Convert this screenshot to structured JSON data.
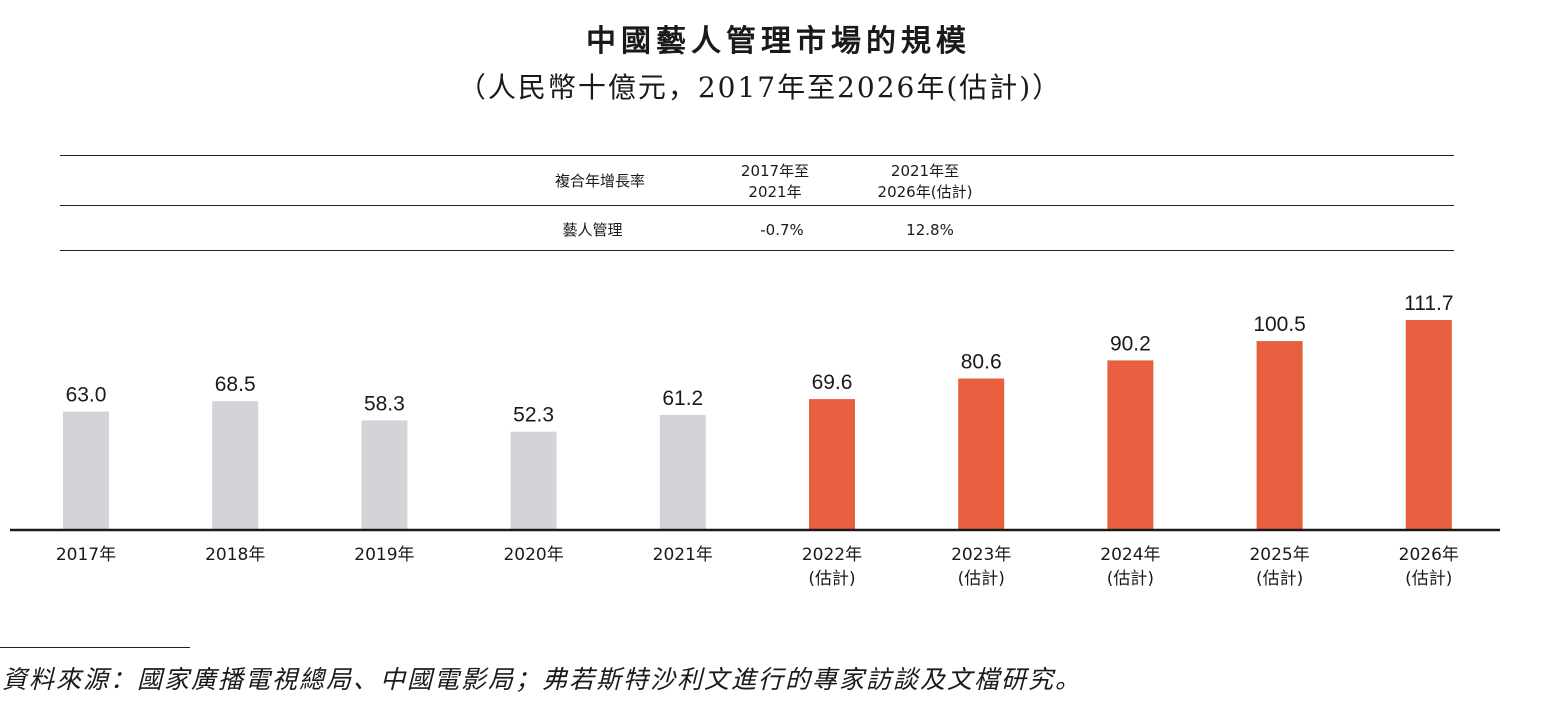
{
  "title": "中國藝人管理市場的規模",
  "subtitle": "（人民幣十億元，2017年至2026年(估計)）",
  "cagr_table": {
    "header_label": "複合年增長率",
    "col1_header_line1": "2017年至",
    "col1_header_line2": "2021年",
    "col2_header_line1": "2021年至",
    "col2_header_line2": "2026年(估計)",
    "row_label": "藝人管理",
    "row_col1": "-0.7%",
    "row_col2": "12.8%"
  },
  "chart_data": {
    "type": "bar",
    "title": "中國藝人管理市場的規模",
    "subtitle": "（人民幣十億元，2017年至2026年(估計)）",
    "categories": [
      "2017年",
      "2018年",
      "2019年",
      "2020年",
      "2021年",
      "2022年",
      "2023年",
      "2024年",
      "2025年",
      "2026年"
    ],
    "category_sublabels": [
      "",
      "",
      "",
      "",
      "",
      "(估計)",
      "(估計)",
      "(估計)",
      "(估計)",
      "(估計)"
    ],
    "values": [
      63.0,
      68.5,
      58.3,
      52.3,
      61.2,
      69.6,
      80.6,
      90.2,
      100.5,
      111.7
    ],
    "value_labels": [
      "63.0",
      "68.5",
      "58.3",
      "52.3",
      "61.2",
      "69.6",
      "80.6",
      "90.2",
      "100.5",
      "111.7"
    ],
    "is_estimate": [
      false,
      false,
      false,
      false,
      false,
      true,
      true,
      true,
      true,
      true
    ],
    "historical_color": "#d3d4d8",
    "estimate_color": "#e85f3f",
    "axis_color": "#1a1a1a",
    "xlabel": "",
    "ylabel": "",
    "ylim": [
      0,
      111.7
    ],
    "grid": false
  },
  "source_text": "資料來源：國家廣播電視總局、中國電影局；弗若斯特沙利文進行的專家訪談及文檔研究。"
}
